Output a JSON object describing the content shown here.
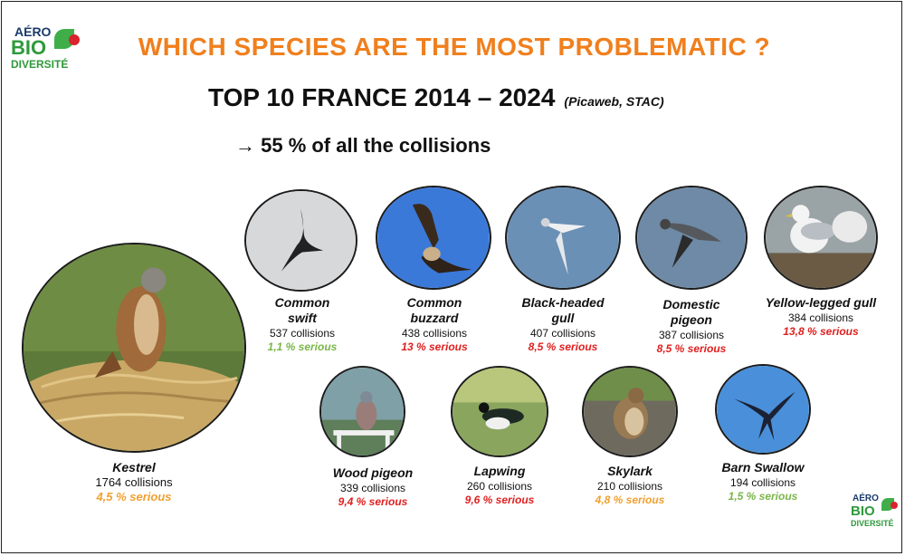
{
  "logo": {
    "line1": "AÉRO",
    "line2": "BIO",
    "line3": "DIVERSITÉ"
  },
  "title": "WHICH SPECIES ARE THE MOST PROBLEMATIC ?",
  "subtitle": {
    "main": "TOP 10 FRANCE 2014 – 2024",
    "source": "(Picaweb, STAC)"
  },
  "highlight": "→ 55 % of all the collisions",
  "colors": {
    "title": "#f07f1d",
    "serious_green": "#7ab648",
    "serious_red": "#e01f1f",
    "serious_orange": "#f0a030"
  },
  "species": [
    {
      "id": "kestrel",
      "name": "Kestrel",
      "collisions": "1764 collisions",
      "serious": "4,5 % serious",
      "severity": "orange",
      "photo": "kestrel-photo"
    },
    {
      "id": "common-swift",
      "name_l1": "Common",
      "name_l2": "swift",
      "collisions": "537 collisions",
      "serious": "1,1 % serious",
      "severity": "green",
      "photo": "swift-photo"
    },
    {
      "id": "common-buzzard",
      "name_l1": "Common",
      "name_l2": "buzzard",
      "collisions": "438 collisions",
      "serious": "13 % serious",
      "severity": "red",
      "photo": "buzzard-photo"
    },
    {
      "id": "black-headed-gull",
      "name_l1": "Black-headed",
      "name_l2": "gull",
      "collisions": "407 collisions",
      "serious": "8,5 % serious",
      "severity": "red",
      "photo": "gull-photo"
    },
    {
      "id": "domestic-pigeon",
      "name_l1": "Domestic",
      "name_l2": "pigeon",
      "collisions": "387 collisions",
      "serious": "8,5 % serious",
      "severity": "red",
      "photo": "pigeon-photo"
    },
    {
      "id": "yellow-legged-gull",
      "name": "Yellow-legged gull",
      "collisions": "384 collisions",
      "serious": "13,8 % serious",
      "severity": "red",
      "photo": "yl-gull-photo"
    },
    {
      "id": "wood-pigeon",
      "name": "Wood pigeon",
      "collisions": "339 collisions",
      "serious": "9,4 % serious",
      "severity": "red",
      "photo": "wood-pigeon-photo"
    },
    {
      "id": "lapwing",
      "name": "Lapwing",
      "collisions": "260 collisions",
      "serious": "9,6 % serious",
      "severity": "red",
      "photo": "lapwing-photo"
    },
    {
      "id": "skylark",
      "name": "Skylark",
      "collisions": "210 collisions",
      "serious": "4,8 % serious",
      "severity": "orange",
      "photo": "skylark-photo"
    },
    {
      "id": "barn-swallow",
      "name": "Barn Swallow",
      "collisions": "194 collisions",
      "serious": "1,5 % serious",
      "severity": "green",
      "photo": "swallow-photo"
    }
  ]
}
